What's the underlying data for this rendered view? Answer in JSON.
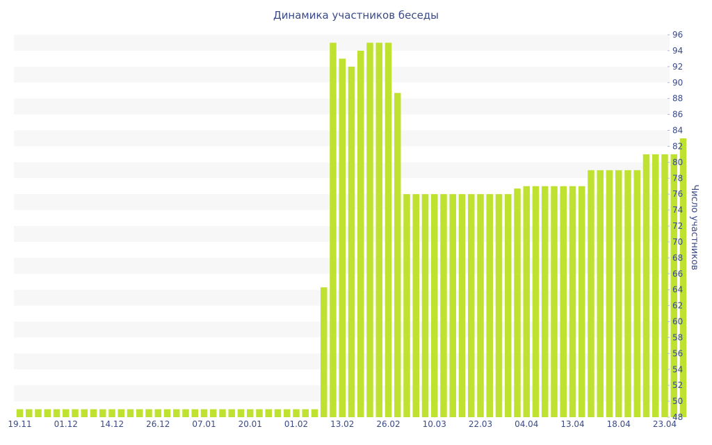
{
  "chart_data": {
    "type": "bar",
    "title": "Динамика участников беседы",
    "xlabel": "",
    "ylabel": "Число участников",
    "ylim": [
      48,
      96
    ],
    "y_ticks": [
      48,
      50,
      52,
      54,
      56,
      58,
      60,
      62,
      64,
      66,
      68,
      70,
      72,
      74,
      76,
      78,
      80,
      82,
      84,
      86,
      88,
      90,
      92,
      94,
      96
    ],
    "y_axis_position": "right",
    "grid": "alternating horizontal bands",
    "legend": "none",
    "bar_color": "#bfe231",
    "band_color": "#f7f7f7",
    "text_color": "#3a4a88",
    "x_tick_labels": [
      "19.11",
      "01.12",
      "14.12",
      "26.12",
      "07.01",
      "20.01",
      "01.02",
      "13.02",
      "26.02",
      "10.03",
      "22.03",
      "04.04",
      "13.04",
      "18.04",
      "23.04"
    ],
    "x_tick_bar_index": [
      0,
      5,
      10,
      15,
      20,
      25,
      30,
      35,
      40,
      45,
      50,
      55,
      60,
      65,
      70
    ],
    "values": [
      49,
      49,
      49,
      49,
      49,
      49,
      49,
      49,
      49,
      49,
      49,
      49,
      49,
      49,
      49,
      49,
      49,
      49,
      49,
      49,
      49,
      49,
      49,
      49,
      49,
      49,
      49,
      49,
      49,
      49,
      49,
      49,
      49,
      64.3,
      95,
      93,
      92,
      94,
      95,
      95,
      95,
      88.7,
      76,
      76,
      76,
      76,
      76,
      76,
      76,
      76,
      76,
      76,
      76,
      76,
      76.7,
      77,
      77,
      77,
      77,
      77,
      77,
      77,
      79,
      79,
      79,
      79,
      79,
      79,
      81,
      81,
      81,
      81,
      83
    ]
  }
}
